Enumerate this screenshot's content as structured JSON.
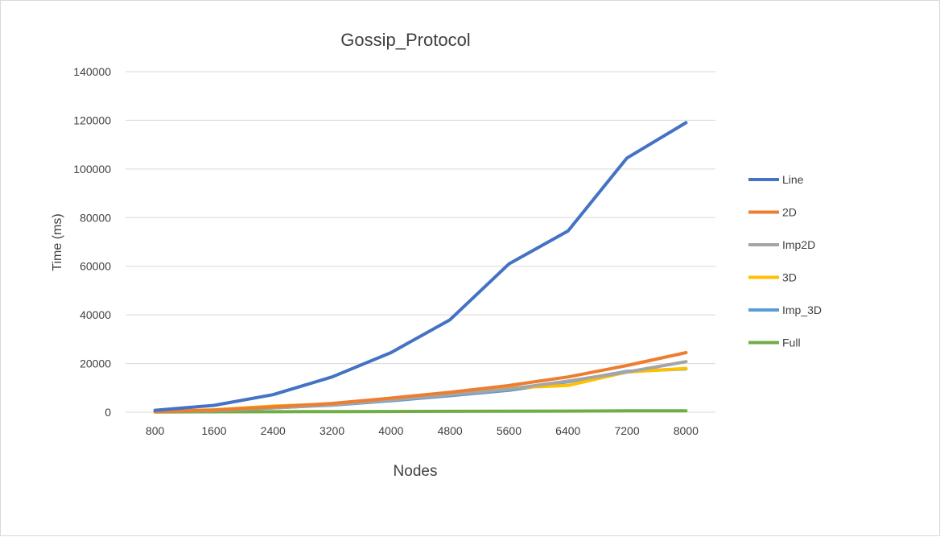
{
  "chart_data": {
    "type": "line",
    "title": "Gossip_Protocol",
    "xlabel": "Nodes",
    "ylabel": "Time (ms)",
    "categories": [
      "800",
      "1600",
      "2400",
      "3200",
      "4000",
      "4800",
      "5600",
      "6400",
      "7200",
      "8000"
    ],
    "ylim": [
      0,
      140000
    ],
    "yticks": [
      "0",
      "20000",
      "40000",
      "60000",
      "80000",
      "100000",
      "120000",
      "140000"
    ],
    "grid": true,
    "legend_position": "right",
    "series": [
      {
        "name": "Line",
        "color": "#4472c4",
        "values": [
          800,
          2800,
          7200,
          14500,
          24500,
          38000,
          61000,
          74500,
          104500,
          119000
        ]
      },
      {
        "name": "2D",
        "color": "#ed7d31",
        "values": [
          200,
          900,
          2200,
          3600,
          5800,
          8200,
          11000,
          14500,
          19200,
          24500
        ]
      },
      {
        "name": "Imp2D",
        "color": "#a5a5a5",
        "values": [
          200,
          700,
          1800,
          3000,
          5000,
          7200,
          9500,
          12800,
          16500,
          20800
        ]
      },
      {
        "name": "3D",
        "color": "#ffc000",
        "values": [
          300,
          1000,
          2500,
          3400,
          5200,
          7500,
          10000,
          11000,
          16500,
          18000
        ]
      },
      {
        "name": "Imp_3D",
        "color": "#5b9bd5",
        "values": [
          200,
          700,
          1800,
          2900,
          4700,
          6800,
          9000,
          12500,
          16800,
          17800
        ]
      },
      {
        "name": "Full",
        "color": "#70ad47",
        "values": [
          100,
          150,
          200,
          250,
          300,
          350,
          400,
          450,
          550,
          600
        ]
      }
    ]
  }
}
